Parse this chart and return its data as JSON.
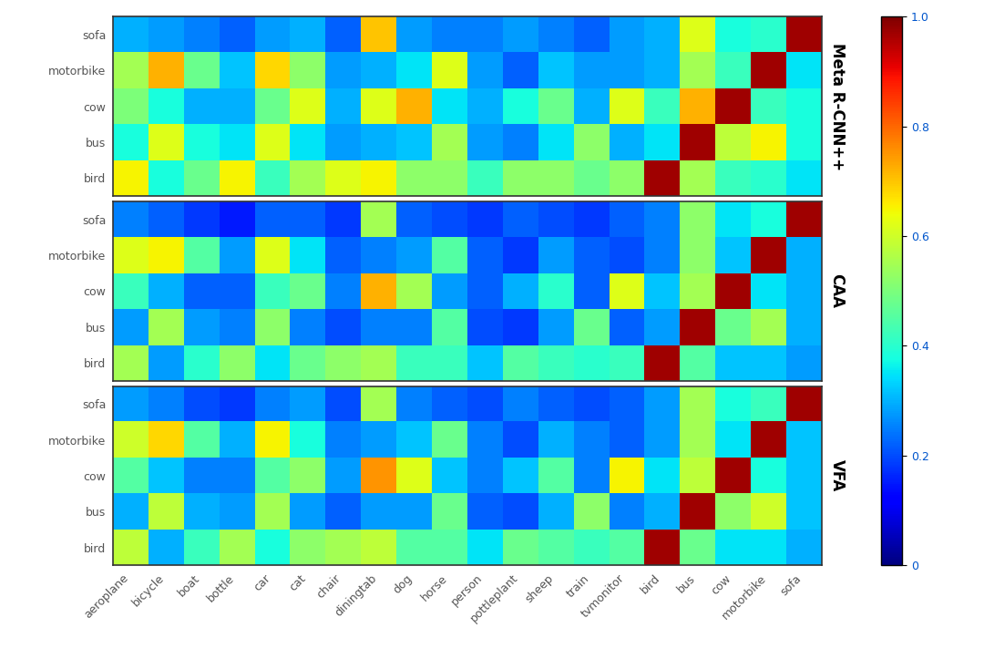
{
  "x_labels": [
    "aeroplane",
    "bicycle",
    "boat",
    "bottle",
    "car",
    "cat",
    "chair",
    "diningtab",
    "dog",
    "horse",
    "person",
    "pottleplant",
    "sheep",
    "train",
    "tvmonitor",
    "bird",
    "bus",
    "cow",
    "motorbike",
    "sofa"
  ],
  "y_labels": [
    "sofa",
    "motorbike",
    "cow",
    "bus",
    "bird"
  ],
  "method_labels": [
    "Meta R-CNN++",
    "CAA",
    "VFA"
  ],
  "vmin": 0.0,
  "vmax": 1.0,
  "colormap": "jet",
  "colorbar_ticks": [
    0,
    0.2,
    0.4,
    0.6,
    0.8,
    1.0
  ],
  "bg_color": "#ffffff",
  "label_color": "#555555",
  "border_color": "#333333",
  "fontsize_labels": 9,
  "fontsize_method": 12,
  "fontsize_colorbar": 9,
  "data_meta": [
    [
      0.3,
      0.28,
      0.25,
      0.22,
      0.28,
      0.3,
      0.22,
      0.7,
      0.28,
      0.25,
      0.25,
      0.28,
      0.25,
      0.22,
      0.28,
      0.3,
      0.62,
      0.38,
      0.4,
      0.97
    ],
    [
      0.55,
      0.72,
      0.48,
      0.32,
      0.68,
      0.52,
      0.28,
      0.3,
      0.35,
      0.62,
      0.28,
      0.22,
      0.32,
      0.28,
      0.28,
      0.3,
      0.55,
      0.42,
      0.97,
      0.35
    ],
    [
      0.5,
      0.38,
      0.3,
      0.3,
      0.48,
      0.62,
      0.3,
      0.62,
      0.72,
      0.35,
      0.3,
      0.38,
      0.48,
      0.3,
      0.62,
      0.42,
      0.72,
      0.97,
      0.42,
      0.38
    ],
    [
      0.38,
      0.62,
      0.38,
      0.35,
      0.62,
      0.35,
      0.28,
      0.3,
      0.32,
      0.55,
      0.28,
      0.25,
      0.35,
      0.52,
      0.3,
      0.35,
      0.97,
      0.58,
      0.65,
      0.38
    ],
    [
      0.65,
      0.38,
      0.48,
      0.65,
      0.42,
      0.55,
      0.62,
      0.65,
      0.52,
      0.52,
      0.42,
      0.52,
      0.52,
      0.48,
      0.52,
      0.97,
      0.55,
      0.42,
      0.4,
      0.35
    ]
  ],
  "data_caa": [
    [
      0.25,
      0.22,
      0.18,
      0.15,
      0.22,
      0.22,
      0.18,
      0.55,
      0.22,
      0.2,
      0.18,
      0.22,
      0.2,
      0.18,
      0.22,
      0.25,
      0.52,
      0.35,
      0.38,
      0.97
    ],
    [
      0.62,
      0.65,
      0.45,
      0.28,
      0.62,
      0.35,
      0.22,
      0.25,
      0.28,
      0.45,
      0.22,
      0.18,
      0.28,
      0.22,
      0.2,
      0.25,
      0.52,
      0.32,
      0.97,
      0.3
    ],
    [
      0.42,
      0.3,
      0.22,
      0.22,
      0.42,
      0.48,
      0.25,
      0.72,
      0.55,
      0.28,
      0.22,
      0.3,
      0.4,
      0.22,
      0.62,
      0.32,
      0.55,
      0.97,
      0.35,
      0.3
    ],
    [
      0.28,
      0.55,
      0.28,
      0.25,
      0.52,
      0.25,
      0.2,
      0.25,
      0.25,
      0.45,
      0.2,
      0.18,
      0.28,
      0.48,
      0.22,
      0.28,
      0.97,
      0.48,
      0.55,
      0.3
    ],
    [
      0.55,
      0.28,
      0.4,
      0.52,
      0.35,
      0.48,
      0.52,
      0.55,
      0.42,
      0.42,
      0.32,
      0.45,
      0.42,
      0.4,
      0.42,
      0.97,
      0.45,
      0.32,
      0.32,
      0.28
    ]
  ],
  "data_vfa": [
    [
      0.28,
      0.25,
      0.2,
      0.18,
      0.25,
      0.28,
      0.2,
      0.55,
      0.25,
      0.22,
      0.2,
      0.25,
      0.22,
      0.2,
      0.22,
      0.28,
      0.55,
      0.38,
      0.42,
      0.97
    ],
    [
      0.6,
      0.68,
      0.45,
      0.3,
      0.65,
      0.38,
      0.25,
      0.28,
      0.32,
      0.48,
      0.25,
      0.2,
      0.3,
      0.25,
      0.22,
      0.28,
      0.55,
      0.35,
      0.97,
      0.32
    ],
    [
      0.45,
      0.32,
      0.25,
      0.25,
      0.45,
      0.52,
      0.28,
      0.75,
      0.62,
      0.32,
      0.25,
      0.32,
      0.45,
      0.25,
      0.65,
      0.35,
      0.58,
      0.97,
      0.38,
      0.32
    ],
    [
      0.3,
      0.58,
      0.3,
      0.28,
      0.55,
      0.28,
      0.22,
      0.28,
      0.28,
      0.48,
      0.22,
      0.2,
      0.3,
      0.52,
      0.25,
      0.3,
      0.97,
      0.52,
      0.6,
      0.32
    ],
    [
      0.58,
      0.3,
      0.42,
      0.55,
      0.38,
      0.52,
      0.55,
      0.58,
      0.45,
      0.45,
      0.35,
      0.48,
      0.45,
      0.42,
      0.45,
      0.97,
      0.48,
      0.35,
      0.35,
      0.3
    ]
  ]
}
